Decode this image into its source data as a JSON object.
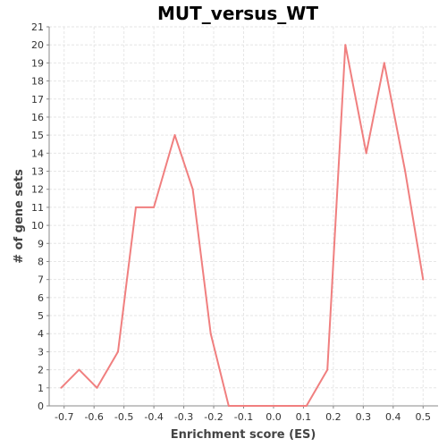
{
  "chart_data": {
    "type": "line",
    "title": "MUT_versus_WT",
    "xlabel": "Enrichment score (ES)",
    "ylabel": "# of gene sets",
    "xlim": [
      -0.75,
      0.55
    ],
    "ylim": [
      0,
      21
    ],
    "x_ticks": [
      "-0.7",
      "-0.6",
      "-0.5",
      "-0.4",
      "-0.3",
      "-0.2",
      "-0.1",
      "0.0",
      "0.1",
      "0.2",
      "0.3",
      "0.4",
      "0.5"
    ],
    "y_ticks": [
      "0",
      "1",
      "2",
      "3",
      "4",
      "5",
      "6",
      "7",
      "8",
      "9",
      "10",
      "11",
      "12",
      "13",
      "14",
      "15",
      "16",
      "17",
      "18",
      "19",
      "20",
      "21"
    ],
    "grid": true,
    "legend": "none",
    "series": [
      {
        "color": "#f07f7f",
        "x": [
          -0.71,
          -0.65,
          -0.59,
          -0.52,
          -0.46,
          -0.4,
          -0.33,
          -0.27,
          -0.21,
          -0.15,
          -0.08,
          -0.02,
          0.05,
          0.11,
          0.18,
          0.24,
          0.31,
          0.37,
          0.44,
          0.5
        ],
        "y": [
          1,
          2,
          1,
          3,
          11,
          11,
          15,
          12,
          4,
          0,
          0,
          0,
          0,
          0,
          2,
          20,
          14,
          19,
          13,
          7
        ]
      }
    ]
  }
}
